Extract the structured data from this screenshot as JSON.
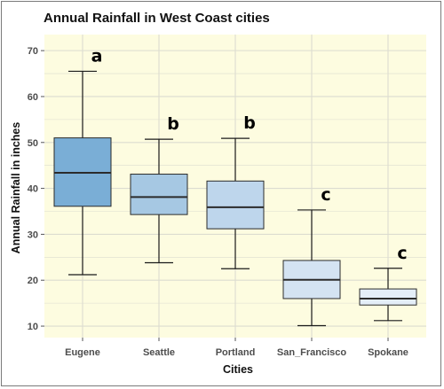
{
  "chart_data": {
    "type": "box",
    "title": "Annual Rainfall in West Coast cities",
    "xlabel": "Cities",
    "ylabel": "Annual Rainfall in inches",
    "ylim": [
      7.5,
      73.5
    ],
    "yticks": [
      10,
      20,
      30,
      40,
      50,
      60,
      70
    ],
    "grid": true,
    "categories": [
      "Eugene",
      "Seattle",
      "Portland",
      "San_Francisco",
      "Spokane"
    ],
    "series": [
      {
        "category": "Eugene",
        "whisker_low": 21.2,
        "q1": 36.1,
        "median": 43.4,
        "q3": 51.0,
        "whisker_high": 65.5,
        "group": "a",
        "color": "#7aaed6"
      },
      {
        "category": "Seattle",
        "whisker_low": 23.8,
        "q1": 34.3,
        "median": 38.1,
        "q3": 43.1,
        "whisker_high": 50.7,
        "group": "b",
        "color": "#a6c8e3"
      },
      {
        "category": "Portland",
        "whisker_low": 22.5,
        "q1": 31.2,
        "median": 35.9,
        "q3": 41.6,
        "whisker_high": 50.9,
        "group": "b",
        "color": "#bed6ec"
      },
      {
        "category": "San_Francisco",
        "whisker_low": 10.1,
        "q1": 16.0,
        "median": 20.1,
        "q3": 24.3,
        "whisker_high": 35.3,
        "group": "c",
        "color": "#d4e3f2"
      },
      {
        "category": "Spokane",
        "whisker_low": 11.2,
        "q1": 14.6,
        "median": 16.0,
        "q3": 18.1,
        "whisker_high": 22.6,
        "group": "c",
        "color": "#e4eef8"
      }
    ]
  },
  "colors": {
    "panel_background": "#fdfce0",
    "grid": "#dcdcd0",
    "box_border": "#2b2b2b",
    "whisker": "#1a1a1a"
  }
}
